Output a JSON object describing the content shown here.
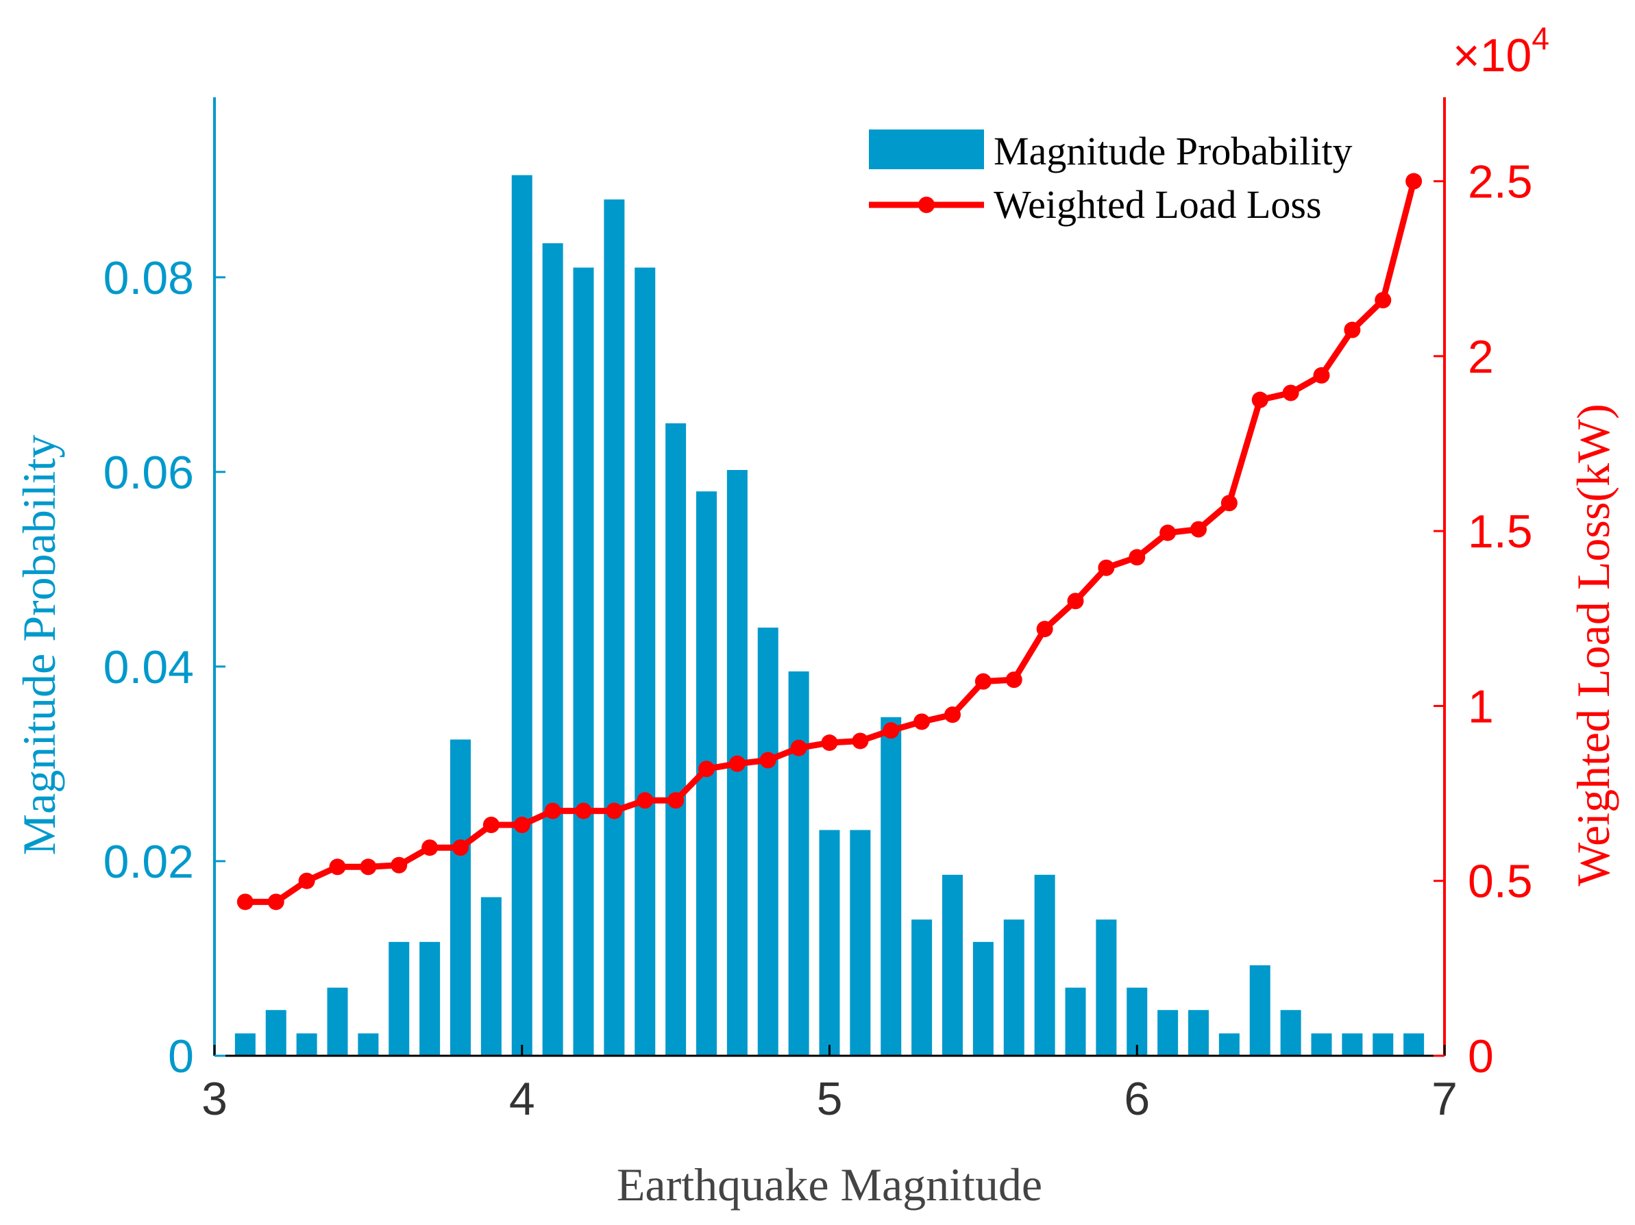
{
  "chart_data": {
    "type": "bar+line",
    "xlabel": "Earthquake Magnitude",
    "xlim": [
      3,
      7
    ],
    "xticks": [
      "3",
      "4",
      "5",
      "6",
      "7"
    ],
    "y_left": {
      "label": "Magnitude Probability",
      "lim": [
        0,
        0.0985
      ],
      "ticks": [
        "0",
        "0.02",
        "0.04",
        "0.06",
        "0.08"
      ],
      "color": "#0099cc"
    },
    "y_right": {
      "label": "Weighted Load Loss(kW)",
      "lim": [
        0,
        27400
      ],
      "ticks": [
        "0",
        "0.5",
        "1",
        "1.5",
        "2",
        "2.5"
      ],
      "exponent_label": "×10",
      "exponent_power": "4",
      "color": "#ff0000"
    },
    "x": [
      3.1,
      3.2,
      3.3,
      3.4,
      3.5,
      3.6,
      3.7,
      3.8,
      3.9,
      4.0,
      4.1,
      4.2,
      4.3,
      4.4,
      4.5,
      4.6,
      4.7,
      4.8,
      4.9,
      5.0,
      5.1,
      5.2,
      5.3,
      5.4,
      5.5,
      5.6,
      5.7,
      5.8,
      5.9,
      6.0,
      6.1,
      6.2,
      6.3,
      6.4,
      6.5,
      6.6,
      6.7,
      6.8,
      6.9
    ],
    "series": [
      {
        "name": "Magnitude Probability",
        "type": "bar",
        "color": "#0099cc",
        "values": [
          0.0023,
          0.0047,
          0.0023,
          0.007,
          0.0023,
          0.0117,
          0.0117,
          0.0325,
          0.0163,
          0.0905,
          0.0835,
          0.081,
          0.088,
          0.081,
          0.065,
          0.058,
          0.0602,
          0.044,
          0.0395,
          0.0232,
          0.0232,
          0.0348,
          0.014,
          0.0186,
          0.0117,
          0.014,
          0.0186,
          0.007,
          0.014,
          0.007,
          0.0047,
          0.0047,
          0.0023,
          0.0093,
          0.0047,
          0.0023,
          0.0023,
          0.0023,
          0.0023
        ]
      },
      {
        "name": "Weighted Load Loss",
        "type": "line",
        "color": "#ff0000",
        "values": [
          4400,
          4400,
          5000,
          5400,
          5400,
          5450,
          5950,
          5950,
          6600,
          6600,
          7000,
          7000,
          7000,
          7300,
          7300,
          8200,
          8350,
          8450,
          8800,
          8950,
          9000,
          9300,
          9550,
          9750,
          10700,
          10750,
          12200,
          13000,
          13950,
          14250,
          14950,
          15050,
          15800,
          18750,
          18950,
          19450,
          20750,
          21600,
          25000
        ]
      }
    ],
    "legend_position": "top-right",
    "grid": false
  }
}
